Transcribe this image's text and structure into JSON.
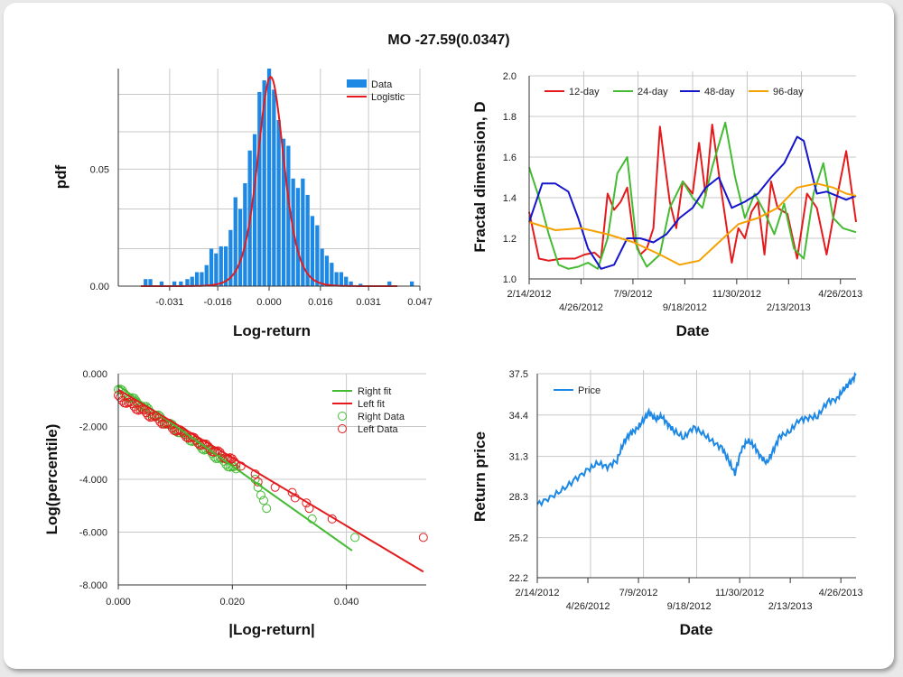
{
  "title": "MO -27.59(0.0347)",
  "colors": {
    "bar": "#1e88e5",
    "logistic": "#e41a1c",
    "d12": "#e41a1c",
    "d24": "#44bb33",
    "d48": "#1515cc",
    "d96": "#f5a100",
    "right": "#44bb33",
    "left": "#e41a1c",
    "price": "#1e88e5",
    "grid": "#c8c8c8"
  },
  "chart_data": [
    {
      "type": "bar",
      "id": "histogram",
      "xlabel": "Log-return",
      "ylabel": "pdf",
      "xlim": [
        -0.047,
        0.047
      ],
      "ylim": [
        0,
        0.093
      ],
      "x_ticks": [
        -0.031,
        -0.016,
        0.0,
        0.016,
        0.031,
        0.047
      ],
      "x_tick_labels": [
        "-0.031",
        "-0.016",
        "0.000",
        "0.016",
        "0.031",
        "0.047"
      ],
      "y_ticks": [
        0,
        0.05
      ],
      "y_tick_labels": [
        "0.00",
        "0.05"
      ],
      "legend": [
        "Data",
        "Logistic"
      ],
      "legend_position": "top-right",
      "bins": [
        {
          "x": -0.0385,
          "v": 0.003
        },
        {
          "x": -0.037,
          "v": 0.003
        },
        {
          "x": -0.0335,
          "v": 0.002
        },
        {
          "x": -0.0295,
          "v": 0.002
        },
        {
          "x": -0.0275,
          "v": 0.002
        },
        {
          "x": -0.0255,
          "v": 0.003
        },
        {
          "x": -0.024,
          "v": 0.004
        },
        {
          "x": -0.0225,
          "v": 0.006
        },
        {
          "x": -0.021,
          "v": 0.006
        },
        {
          "x": -0.0195,
          "v": 0.009
        },
        {
          "x": -0.018,
          "v": 0.016
        },
        {
          "x": -0.0165,
          "v": 0.014
        },
        {
          "x": -0.015,
          "v": 0.017
        },
        {
          "x": -0.0135,
          "v": 0.017
        },
        {
          "x": -0.012,
          "v": 0.024
        },
        {
          "x": -0.0105,
          "v": 0.038
        },
        {
          "x": -0.009,
          "v": 0.033
        },
        {
          "x": -0.0075,
          "v": 0.044
        },
        {
          "x": -0.006,
          "v": 0.058
        },
        {
          "x": -0.0045,
          "v": 0.065
        },
        {
          "x": -0.003,
          "v": 0.083
        },
        {
          "x": -0.0015,
          "v": 0.088
        },
        {
          "x": 0.0,
          "v": 0.093
        },
        {
          "x": 0.0015,
          "v": 0.084
        },
        {
          "x": 0.003,
          "v": 0.071
        },
        {
          "x": 0.0045,
          "v": 0.063
        },
        {
          "x": 0.006,
          "v": 0.06
        },
        {
          "x": 0.0075,
          "v": 0.046
        },
        {
          "x": 0.009,
          "v": 0.042
        },
        {
          "x": 0.0105,
          "v": 0.046
        },
        {
          "x": 0.012,
          "v": 0.039
        },
        {
          "x": 0.0135,
          "v": 0.03
        },
        {
          "x": 0.015,
          "v": 0.026
        },
        {
          "x": 0.0165,
          "v": 0.016
        },
        {
          "x": 0.018,
          "v": 0.013
        },
        {
          "x": 0.0195,
          "v": 0.01
        },
        {
          "x": 0.021,
          "v": 0.006
        },
        {
          "x": 0.0225,
          "v": 0.006
        },
        {
          "x": 0.024,
          "v": 0.004
        },
        {
          "x": 0.0255,
          "v": 0.002
        },
        {
          "x": 0.0285,
          "v": 0.001
        },
        {
          "x": 0.0375,
          "v": 0.002
        },
        {
          "x": 0.0445,
          "v": 0.002
        }
      ],
      "logistic": {
        "mu": 0.0005,
        "s": 0.00275
      }
    },
    {
      "type": "line",
      "id": "fractal",
      "xlabel": "Date",
      "ylabel": "Fractal dimension, D",
      "ylim": [
        1.0,
        2.0
      ],
      "y_ticks": [
        1.0,
        1.2,
        1.4,
        1.6,
        1.8,
        2.0
      ],
      "y_tick_labels": [
        "1.0",
        "1.2",
        "1.4",
        "1.6",
        "1.8",
        "2.0"
      ],
      "x_ticks_upper": [
        "2/14/2012",
        "7/9/2012",
        "11/30/2012",
        "4/26/2013"
      ],
      "x_ticks_lower": [
        "4/26/2012",
        "9/18/2012",
        "2/13/2013"
      ],
      "legend": [
        "12-day",
        "24-day",
        "48-day",
        "96-day"
      ],
      "legend_position": "top",
      "series": [
        {
          "name": "12-day",
          "x": [
            0,
            0.03,
            0.06,
            0.1,
            0.14,
            0.17,
            0.2,
            0.22,
            0.24,
            0.26,
            0.28,
            0.3,
            0.32,
            0.34,
            0.36,
            0.38,
            0.4,
            0.43,
            0.45,
            0.47,
            0.5,
            0.52,
            0.54,
            0.56,
            0.58,
            0.6,
            0.62,
            0.64,
            0.66,
            0.68,
            0.7,
            0.72,
            0.74,
            0.76,
            0.79,
            0.82,
            0.85,
            0.88,
            0.91,
            0.94,
            0.97,
            1.0
          ],
          "values": [
            1.33,
            1.1,
            1.09,
            1.1,
            1.1,
            1.12,
            1.13,
            1.1,
            1.42,
            1.34,
            1.38,
            1.45,
            1.2,
            1.12,
            1.15,
            1.25,
            1.75,
            1.38,
            1.25,
            1.48,
            1.42,
            1.67,
            1.41,
            1.76,
            1.52,
            1.3,
            1.08,
            1.25,
            1.2,
            1.33,
            1.38,
            1.12,
            1.48,
            1.35,
            1.32,
            1.1,
            1.42,
            1.35,
            1.12,
            1.39,
            1.63,
            1.28
          ]
        },
        {
          "name": "24-day",
          "x": [
            0,
            0.03,
            0.06,
            0.09,
            0.12,
            0.15,
            0.18,
            0.21,
            0.24,
            0.27,
            0.3,
            0.33,
            0.36,
            0.4,
            0.43,
            0.47,
            0.5,
            0.53,
            0.56,
            0.6,
            0.63,
            0.66,
            0.69,
            0.72,
            0.75,
            0.78,
            0.81,
            0.84,
            0.87,
            0.9,
            0.93,
            0.96,
            1.0
          ],
          "values": [
            1.55,
            1.4,
            1.22,
            1.07,
            1.05,
            1.06,
            1.08,
            1.05,
            1.2,
            1.52,
            1.6,
            1.15,
            1.06,
            1.12,
            1.35,
            1.48,
            1.4,
            1.35,
            1.55,
            1.77,
            1.5,
            1.3,
            1.42,
            1.33,
            1.22,
            1.37,
            1.15,
            1.1,
            1.42,
            1.57,
            1.3,
            1.25,
            1.23
          ]
        },
        {
          "name": "48-day",
          "x": [
            0,
            0.04,
            0.08,
            0.12,
            0.15,
            0.18,
            0.22,
            0.26,
            0.3,
            0.34,
            0.38,
            0.42,
            0.46,
            0.5,
            0.54,
            0.58,
            0.62,
            0.66,
            0.7,
            0.74,
            0.78,
            0.82,
            0.84,
            0.86,
            0.88,
            0.91,
            0.94,
            0.97,
            1.0
          ],
          "values": [
            1.28,
            1.47,
            1.47,
            1.43,
            1.3,
            1.15,
            1.05,
            1.07,
            1.2,
            1.2,
            1.18,
            1.22,
            1.3,
            1.35,
            1.45,
            1.5,
            1.35,
            1.38,
            1.42,
            1.5,
            1.57,
            1.7,
            1.68,
            1.55,
            1.42,
            1.43,
            1.41,
            1.39,
            1.41
          ]
        },
        {
          "name": "96-day",
          "x": [
            0,
            0.08,
            0.16,
            0.24,
            0.32,
            0.4,
            0.46,
            0.52,
            0.58,
            0.64,
            0.7,
            0.76,
            0.82,
            0.88,
            0.93,
            0.97,
            1.0
          ],
          "values": [
            1.28,
            1.24,
            1.25,
            1.22,
            1.18,
            1.12,
            1.07,
            1.09,
            1.18,
            1.27,
            1.3,
            1.35,
            1.45,
            1.47,
            1.45,
            1.42,
            1.41
          ]
        }
      ]
    },
    {
      "type": "scatter",
      "id": "tails",
      "xlabel": "|Log-return|",
      "ylabel": "Log(percentile)",
      "xlim": [
        0,
        0.054
      ],
      "ylim": [
        -8,
        0
      ],
      "x_ticks": [
        0,
        0.02,
        0.04
      ],
      "x_tick_labels": [
        "0.000",
        "0.020",
        "0.040"
      ],
      "y_ticks": [
        0,
        -2,
        -4,
        -6,
        -8
      ],
      "y_tick_labels": [
        "0.000",
        "-2.000",
        "-4.000",
        "-6.000",
        "-8.000"
      ],
      "legend": [
        "Right fit",
        "Left fit",
        "Right Data",
        "Left Data"
      ],
      "legend_position": "top-right",
      "right_fit": {
        "x": [
          0,
          0.041
        ],
        "values": [
          -0.45,
          -6.7
        ]
      },
      "left_fit": {
        "x": [
          0,
          0.0535
        ],
        "values": [
          -0.6,
          -7.5
        ]
      },
      "right_extremes": [
        [
          0.024,
          -4.0
        ],
        [
          0.0245,
          -4.3
        ],
        [
          0.025,
          -4.6
        ],
        [
          0.0255,
          -4.8
        ],
        [
          0.026,
          -5.1
        ],
        [
          0.034,
          -5.5
        ],
        [
          0.0415,
          -6.2
        ]
      ],
      "left_extremes": [
        [
          0.0215,
          -3.5
        ],
        [
          0.024,
          -3.8
        ],
        [
          0.0245,
          -4.1
        ],
        [
          0.0275,
          -4.3
        ],
        [
          0.0305,
          -4.5
        ],
        [
          0.031,
          -4.7
        ],
        [
          0.033,
          -4.9
        ],
        [
          0.0335,
          -5.1
        ],
        [
          0.0375,
          -5.5
        ],
        [
          0.0535,
          -6.2
        ]
      ]
    },
    {
      "type": "line",
      "id": "price",
      "xlabel": "Date",
      "ylabel": "Return price",
      "ylim": [
        22.2,
        37.5
      ],
      "y_ticks": [
        22.2,
        25.2,
        28.3,
        31.3,
        34.4,
        37.5
      ],
      "y_tick_labels": [
        "22.2",
        "25.2",
        "28.3",
        "31.3",
        "34.4",
        "37.5"
      ],
      "x_ticks_upper": [
        "2/14/2012",
        "7/9/2012",
        "11/30/2012",
        "4/26/2013"
      ],
      "x_ticks_lower": [
        "4/26/2012",
        "9/18/2012",
        "2/13/2013"
      ],
      "legend": [
        "Price"
      ],
      "legend_position": "top-left",
      "series": [
        {
          "name": "Price",
          "x": [
            0,
            0.04,
            0.08,
            0.12,
            0.16,
            0.19,
            0.22,
            0.25,
            0.27,
            0.29,
            0.31,
            0.33,
            0.35,
            0.37,
            0.39,
            0.41,
            0.43,
            0.46,
            0.49,
            0.52,
            0.55,
            0.58,
            0.6,
            0.62,
            0.64,
            0.66,
            0.68,
            0.7,
            0.72,
            0.74,
            0.76,
            0.79,
            0.82,
            0.85,
            0.88,
            0.91,
            0.94,
            0.96,
            0.98,
            1.0
          ],
          "values": [
            27.7,
            28.2,
            28.8,
            29.6,
            30.3,
            30.8,
            30.5,
            31.0,
            32.3,
            33.0,
            33.3,
            33.9,
            34.6,
            34.1,
            34.3,
            33.7,
            33.2,
            32.7,
            33.5,
            33.0,
            32.4,
            31.9,
            31.0,
            30.0,
            31.8,
            32.5,
            32.1,
            31.3,
            30.8,
            31.7,
            32.8,
            33.1,
            34.0,
            34.2,
            34.3,
            35.4,
            35.6,
            36.3,
            36.8,
            37.4
          ]
        }
      ]
    }
  ]
}
